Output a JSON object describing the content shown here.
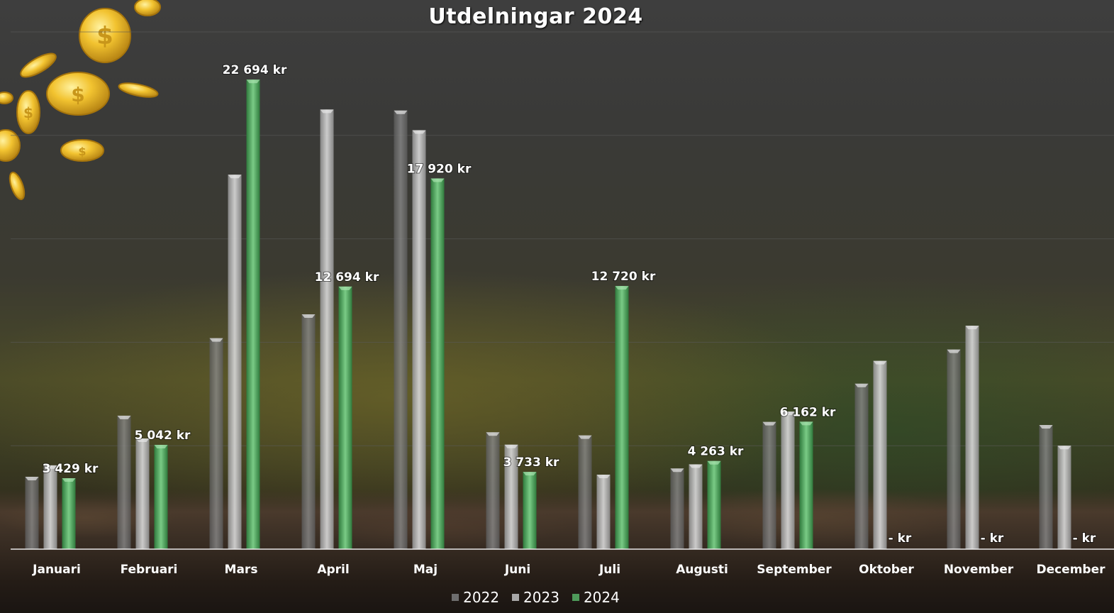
{
  "chart_data": {
    "type": "bar",
    "title": "Utdelningar 2024",
    "categories": [
      "Januari",
      "Februari",
      "Mars",
      "April",
      "Maj",
      "Juni",
      "Juli",
      "Augusti",
      "September",
      "Oktober",
      "November",
      "December"
    ],
    "series": [
      {
        "name": "2022",
        "values": [
          3500,
          6450,
          10200,
          11350,
          21200,
          5650,
          5500,
          3900,
          6150,
          8000,
          9650,
          6000
        ],
        "labels": []
      },
      {
        "name": "2023",
        "values": [
          4050,
          5350,
          18100,
          21250,
          20250,
          5050,
          3600,
          4100,
          6650,
          9100,
          10800,
          5000
        ],
        "labels": []
      },
      {
        "name": "2024",
        "values": [
          3429,
          5042,
          22694,
          12694,
          17920,
          3733,
          12720,
          4263,
          6162,
          0,
          0,
          0
        ],
        "labels": [
          "3 429 kr",
          "5 042 kr",
          "22 694 kr",
          "12 694 kr",
          "17 920 kr",
          "3 733 kr",
          "12 720 kr",
          "4 263 kr",
          "6 162 kr",
          "-   kr",
          "-   kr",
          "-   kr"
        ]
      }
    ],
    "ylim": [
      0,
      25000
    ],
    "grid": true,
    "legend": "bottom",
    "xlabel": "",
    "ylabel": ""
  },
  "colors": {
    "s2022": "#6e6e6e",
    "s2023": "#a8a8a8",
    "s2024": "#4e9a5a",
    "text": "#ffffff",
    "gridline": "#5a5a5a"
  },
  "decoration": "gold-coin-icon"
}
